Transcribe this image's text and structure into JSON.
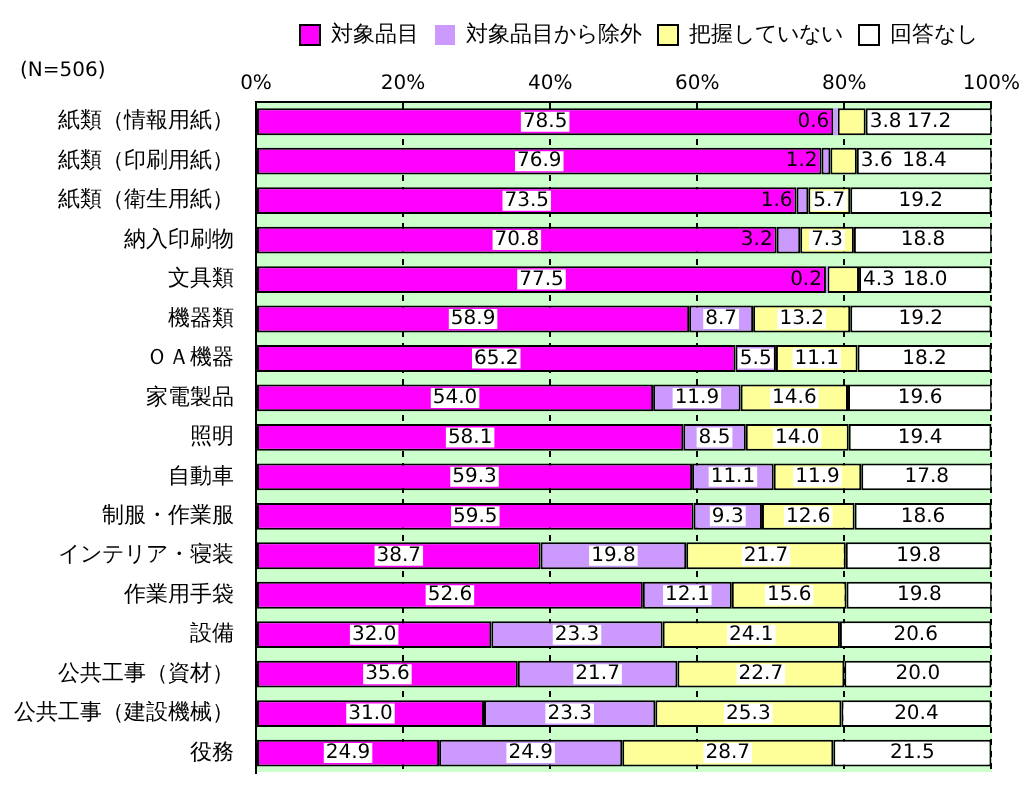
{
  "chart_data": {
    "type": "bar",
    "orientation": "horizontal",
    "stacked": true,
    "annotations": [
      "(N=506)"
    ],
    "categories": [
      "紙類（情報用紙）",
      "紙類（印刷用紙）",
      "紙類（衛生用紙）",
      "納入印刷物",
      "文具類",
      "機器類",
      "ＯＡ機器",
      "家電製品",
      "照明",
      "自動車",
      "制服・作業服",
      "インテリア・寝装",
      "作業用手袋",
      "設備",
      "公共工事（資材）",
      "公共工事（建設機械）",
      "役務"
    ],
    "series": [
      {
        "name": "対象品目",
        "color": "#ff00ff",
        "values": [
          78.5,
          76.9,
          73.5,
          70.8,
          77.5,
          58.9,
          65.2,
          54.0,
          58.1,
          59.3,
          59.5,
          38.7,
          52.6,
          32.0,
          35.6,
          31.0,
          24.9
        ],
        "value_labels": [
          "78.5",
          "76.9",
          "73.5",
          "70.8",
          "77.5",
          "58.9",
          "65.2",
          "54.0",
          "58.1",
          "59.3",
          "59.5",
          "38.7",
          "52.6",
          "32.0",
          "35.6",
          "31.0",
          "24.9"
        ]
      },
      {
        "name": "対象品目から除外",
        "color": "#cc99ff",
        "values": [
          0.6,
          1.2,
          1.6,
          3.2,
          0.2,
          8.7,
          5.5,
          11.9,
          8.5,
          11.1,
          9.3,
          19.8,
          12.1,
          23.3,
          21.7,
          23.3,
          24.9
        ],
        "value_labels": [
          "0.6",
          "1.2",
          "1.6",
          "3.2",
          "0.2",
          "8.7",
          "5.5",
          "11.9",
          "8.5",
          "11.1",
          "9.3",
          "19.8",
          "12.1",
          "23.3",
          "21.7",
          "23.3",
          "24.9"
        ]
      },
      {
        "name": "把握していない",
        "color": "#ffff99",
        "values": [
          3.8,
          3.6,
          5.7,
          7.3,
          4.3,
          13.2,
          11.1,
          14.6,
          14.0,
          11.9,
          12.6,
          21.7,
          15.6,
          24.1,
          22.7,
          25.3,
          28.7
        ],
        "value_labels": [
          "3.8",
          "3.6",
          "5.7",
          "7.3",
          "4.3",
          "13.2",
          "11.1",
          "14.6",
          "14.0",
          "11.9",
          "12.6",
          "21.7",
          "15.6",
          "24.1",
          "22.7",
          "25.3",
          "28.7"
        ]
      },
      {
        "name": "回答なし",
        "color": "#ffffff",
        "values": [
          17.2,
          18.4,
          19.2,
          18.8,
          18.0,
          19.2,
          18.2,
          19.6,
          19.4,
          17.8,
          18.6,
          19.8,
          19.8,
          20.6,
          20.0,
          20.4,
          21.5
        ],
        "value_labels": [
          "17.2",
          "18.4",
          "19.2",
          "18.8",
          "18.0",
          "19.2",
          "18.2",
          "19.6",
          "19.4",
          "17.8",
          "18.6",
          "19.8",
          "19.8",
          "20.6",
          "20.0",
          "20.4",
          "21.5"
        ]
      }
    ],
    "xlim": [
      0,
      100
    ],
    "xticks": [
      {
        "value": 0,
        "label": "0%"
      },
      {
        "value": 20,
        "label": "20%"
      },
      {
        "value": 40,
        "label": "40%"
      },
      {
        "value": 60,
        "label": "60%"
      },
      {
        "value": 80,
        "label": "80%"
      },
      {
        "value": 100,
        "label": "100%"
      }
    ],
    "grid": "x",
    "legend": "top"
  }
}
